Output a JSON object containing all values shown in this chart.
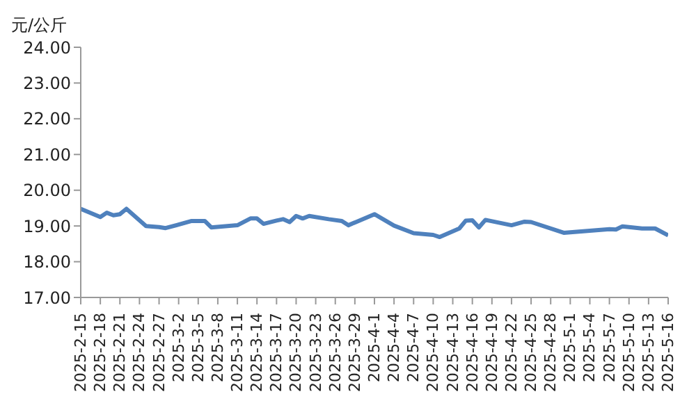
{
  "chart_data": {
    "type": "line",
    "ylabel": "元/公斤",
    "x": [
      "2025-02-15",
      "2025-02-18",
      "2025-02-19",
      "2025-02-20",
      "2025-02-21",
      "2025-02-22",
      "2025-02-25",
      "2025-02-27",
      "2025-02-28",
      "2025-03-04",
      "2025-03-06",
      "2025-03-07",
      "2025-03-11",
      "2025-03-13",
      "2025-03-14",
      "2025-03-15",
      "2025-03-17",
      "2025-03-18",
      "2025-03-19",
      "2025-03-20",
      "2025-03-21",
      "2025-03-22",
      "2025-03-25",
      "2025-03-27",
      "2025-03-28",
      "2025-04-01",
      "2025-04-04",
      "2025-04-07",
      "2025-04-10",
      "2025-04-11",
      "2025-04-14",
      "2025-04-15",
      "2025-04-16",
      "2025-04-17",
      "2025-04-18",
      "2025-04-22",
      "2025-04-24",
      "2025-04-25",
      "2025-04-30",
      "2025-05-07",
      "2025-05-08",
      "2025-05-09",
      "2025-05-12",
      "2025-05-14",
      "2025-05-16"
    ],
    "series": [
      {
        "color": "#4f81bd",
        "values": [
          19.48,
          19.25,
          19.37,
          19.3,
          19.33,
          19.48,
          19.0,
          18.97,
          18.94,
          19.14,
          19.14,
          18.96,
          19.02,
          19.21,
          19.21,
          19.06,
          19.15,
          19.19,
          19.11,
          19.28,
          19.21,
          19.28,
          19.19,
          19.14,
          19.02,
          19.33,
          19.01,
          18.8,
          18.75,
          18.69,
          18.93,
          19.15,
          19.16,
          18.96,
          19.17,
          19.02,
          19.12,
          19.11,
          18.81,
          18.91,
          18.9,
          18.99,
          18.93,
          18.93,
          18.74
        ]
      }
    ],
    "xlim": [
      "2025-02-15",
      "2025-05-16"
    ],
    "xticks": [
      {
        "value": "2025-02-15",
        "label": "2025-2-15"
      },
      {
        "value": "2025-02-18",
        "label": "2025-2-18"
      },
      {
        "value": "2025-02-21",
        "label": "2025-2-21"
      },
      {
        "value": "2025-02-24",
        "label": "2025-2-24"
      },
      {
        "value": "2025-02-27",
        "label": "2025-2-27"
      },
      {
        "value": "2025-03-02",
        "label": "2025-3-2"
      },
      {
        "value": "2025-03-05",
        "label": "2025-3-5"
      },
      {
        "value": "2025-03-08",
        "label": "2025-3-8"
      },
      {
        "value": "2025-03-11",
        "label": "2025-3-11"
      },
      {
        "value": "2025-03-14",
        "label": "2025-3-14"
      },
      {
        "value": "2025-03-17",
        "label": "2025-3-17"
      },
      {
        "value": "2025-03-20",
        "label": "2025-3-20"
      },
      {
        "value": "2025-03-23",
        "label": "2025-3-23"
      },
      {
        "value": "2025-03-26",
        "label": "2025-3-26"
      },
      {
        "value": "2025-03-29",
        "label": "2025-3-29"
      },
      {
        "value": "2025-04-01",
        "label": "2025-4-1"
      },
      {
        "value": "2025-04-04",
        "label": "2025-4-4"
      },
      {
        "value": "2025-04-07",
        "label": "2025-4-7"
      },
      {
        "value": "2025-04-10",
        "label": "2025-4-10"
      },
      {
        "value": "2025-04-13",
        "label": "2025-4-13"
      },
      {
        "value": "2025-04-16",
        "label": "2025-4-16"
      },
      {
        "value": "2025-04-19",
        "label": "2025-4-19"
      },
      {
        "value": "2025-04-22",
        "label": "2025-4-22"
      },
      {
        "value": "2025-04-25",
        "label": "2025-4-25"
      },
      {
        "value": "2025-04-28",
        "label": "2025-4-28"
      },
      {
        "value": "2025-05-01",
        "label": "2025-5-1"
      },
      {
        "value": "2025-05-04",
        "label": "2025-5-4"
      },
      {
        "value": "2025-05-07",
        "label": "2025-5-7"
      },
      {
        "value": "2025-05-10",
        "label": "2025-5-10"
      },
      {
        "value": "2025-05-13",
        "label": "2025-5-13"
      },
      {
        "value": "2025-05-16",
        "label": "2025-5-16"
      }
    ],
    "ylim": [
      17,
      24
    ],
    "yticks": [
      {
        "value": 17,
        "label": "17.00"
      },
      {
        "value": 18,
        "label": "18.00"
      },
      {
        "value": 19,
        "label": "19.00"
      },
      {
        "value": 20,
        "label": "20.00"
      },
      {
        "value": 21,
        "label": "21.00"
      },
      {
        "value": 22,
        "label": "22.00"
      },
      {
        "value": 23,
        "label": "23.00"
      },
      {
        "value": 24,
        "label": "24.00"
      }
    ],
    "grid": false,
    "legend": false,
    "marker": "none",
    "line_style": "solid"
  }
}
